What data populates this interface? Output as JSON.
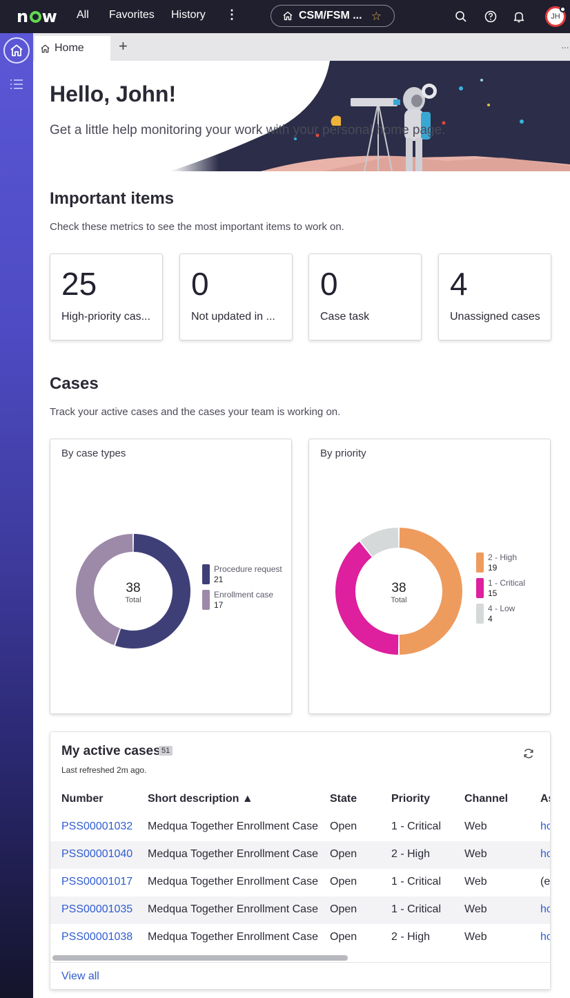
{
  "topbar": {
    "logo": "now",
    "nav": [
      "All",
      "Favorites",
      "History"
    ],
    "more_icon": "vertical-dots-icon",
    "context_pill": "CSM/FSM ...",
    "icons": [
      "search-icon",
      "help-icon",
      "bell-icon"
    ],
    "avatar_initials": "JH"
  },
  "tabs": {
    "active_label": "Home",
    "add_label": "+",
    "more_label": "···"
  },
  "hero": {
    "greeting": "Hello, John!",
    "subtitle": "Get a little help monitoring your work with your personal home page."
  },
  "important": {
    "title": "Important items",
    "description": "Check these metrics to see the most important items to work on.",
    "metrics": [
      {
        "value": "25",
        "label": "High-priority cas..."
      },
      {
        "value": "0",
        "label": "Not updated in ..."
      },
      {
        "value": "0",
        "label": "Case task"
      },
      {
        "value": "4",
        "label": "Unassigned cases"
      }
    ]
  },
  "cases": {
    "title": "Cases",
    "description": "Track your active cases and the cases your team is working on."
  },
  "chart_data": [
    {
      "type": "pie",
      "title": "By case types",
      "center_value": "38",
      "center_label": "Total",
      "categories": [
        "Procedure request",
        "Enrollment case"
      ],
      "values": [
        21,
        17
      ],
      "colors": [
        "#3f3f78",
        "#9d89a8"
      ],
      "value_labels": [
        "21",
        "17"
      ]
    },
    {
      "type": "pie",
      "title": "By priority",
      "center_value": "38",
      "center_label": "Total",
      "categories": [
        "2 - High",
        "1 - Critical",
        "4 - Low"
      ],
      "values": [
        19,
        15,
        4
      ],
      "colors": [
        "#ee9b5e",
        "#de1f9e",
        "#d6d9d9"
      ],
      "value_labels": [
        "19",
        "15",
        "4"
      ]
    }
  ],
  "active_cases": {
    "title": "My active cases",
    "count": "51",
    "last_refreshed": "Last refreshed 2m ago.",
    "refresh_icon": "refresh-icon",
    "columns": [
      "Number",
      "Short description ▲",
      "State",
      "Priority",
      "Channel",
      "As"
    ],
    "rows": [
      [
        "PSS00001032",
        "Medqua Together Enrollment Case",
        "Open",
        "1 - Critical",
        "Web",
        "ho"
      ],
      [
        "PSS00001040",
        "Medqua Together Enrollment Case",
        "Open",
        "2 - High",
        "Web",
        "ho"
      ],
      [
        "PSS00001017",
        "Medqua Together Enrollment Case",
        "Open",
        "1 - Critical",
        "Web",
        "(er"
      ],
      [
        "PSS00001035",
        "Medqua Together Enrollment Case",
        "Open",
        "1 - Critical",
        "Web",
        "ho"
      ],
      [
        "PSS00001038",
        "Medqua Together Enrollment Case",
        "Open",
        "2 - High",
        "Web",
        "ho"
      ]
    ],
    "view_all": "View all"
  },
  "colors": {
    "topbar": "#1f1f2e",
    "rail_top": "#5b57d6",
    "link": "#2f5ccf"
  }
}
